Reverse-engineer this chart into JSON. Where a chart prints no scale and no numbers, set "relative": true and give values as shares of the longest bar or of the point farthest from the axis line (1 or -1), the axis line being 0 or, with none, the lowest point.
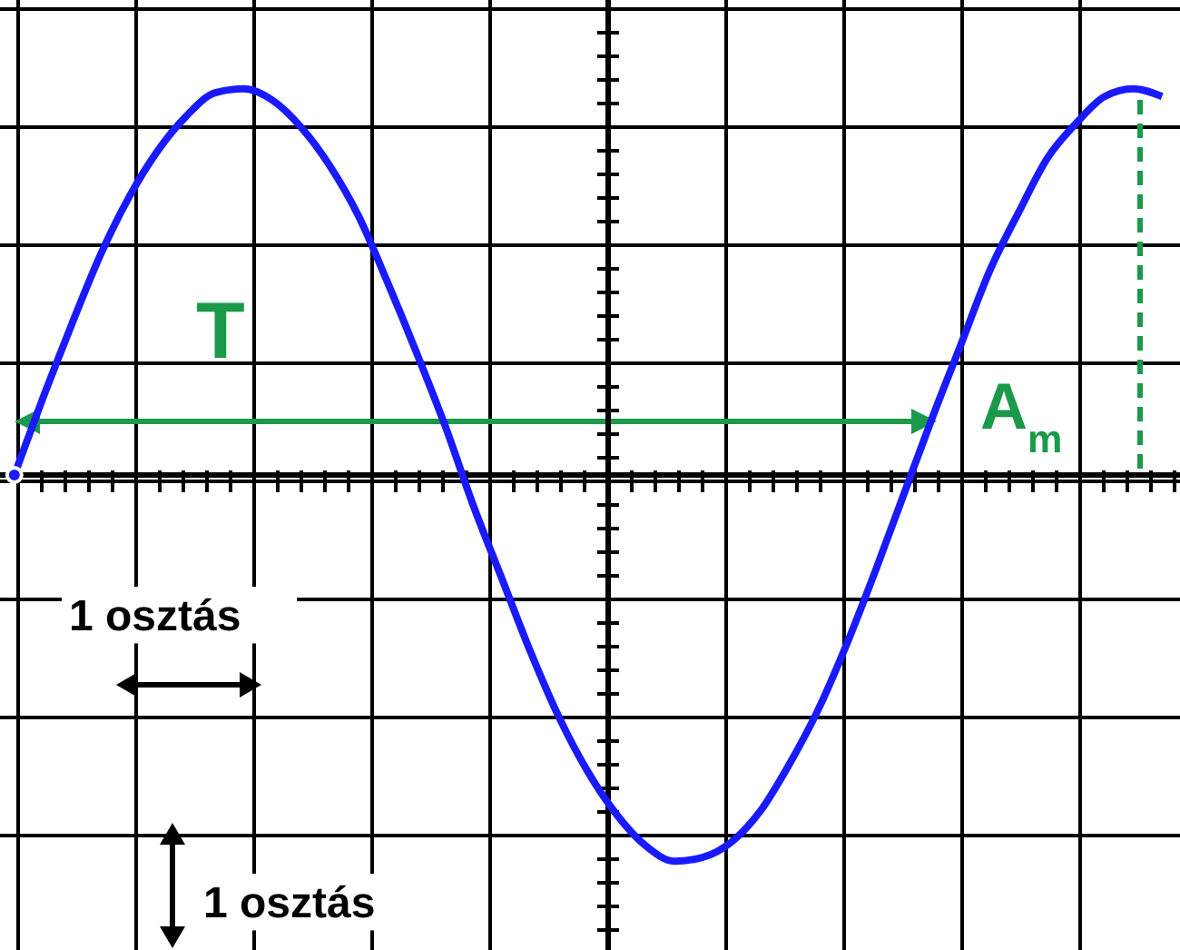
{
  "chart_data": {
    "type": "line",
    "relative": true,
    "grid": true,
    "marker": "none",
    "line_style": "solid",
    "categories": [
      null,
      null,
      null,
      null,
      null,
      null,
      null,
      null,
      null,
      null,
      null,
      null,
      null,
      null,
      null,
      null,
      null,
      null,
      null,
      null,
      null,
      null,
      null,
      null,
      null,
      null,
      null,
      null,
      null,
      null,
      null,
      null,
      null,
      null,
      null,
      null,
      null,
      null,
      null,
      null,
      null
    ],
    "series": [
      {
        "color": "#1a1aff",
        "values": [
          0,
          0.2,
          0.39,
          0.57,
          0.72,
          0.84,
          0.93,
          0.99,
          1,
          0.97,
          0.9,
          0.8,
          0.67,
          0.5,
          0.32,
          0.13,
          -0.08,
          -0.27,
          -0.46,
          -0.63,
          -0.77,
          -0.88,
          -0.96,
          -1,
          -0.99,
          -0.95,
          -0.87,
          -0.75,
          -0.61,
          -0.44,
          -0.25,
          -0.05,
          0.15,
          0.34,
          0.53,
          0.68,
          0.82,
          0.91,
          0.98,
          1,
          0.98
        ]
      }
    ],
    "annotations": [
      "T",
      "A$_{m}$",
      "1 osztás",
      "1 osztás"
    ]
  }
}
